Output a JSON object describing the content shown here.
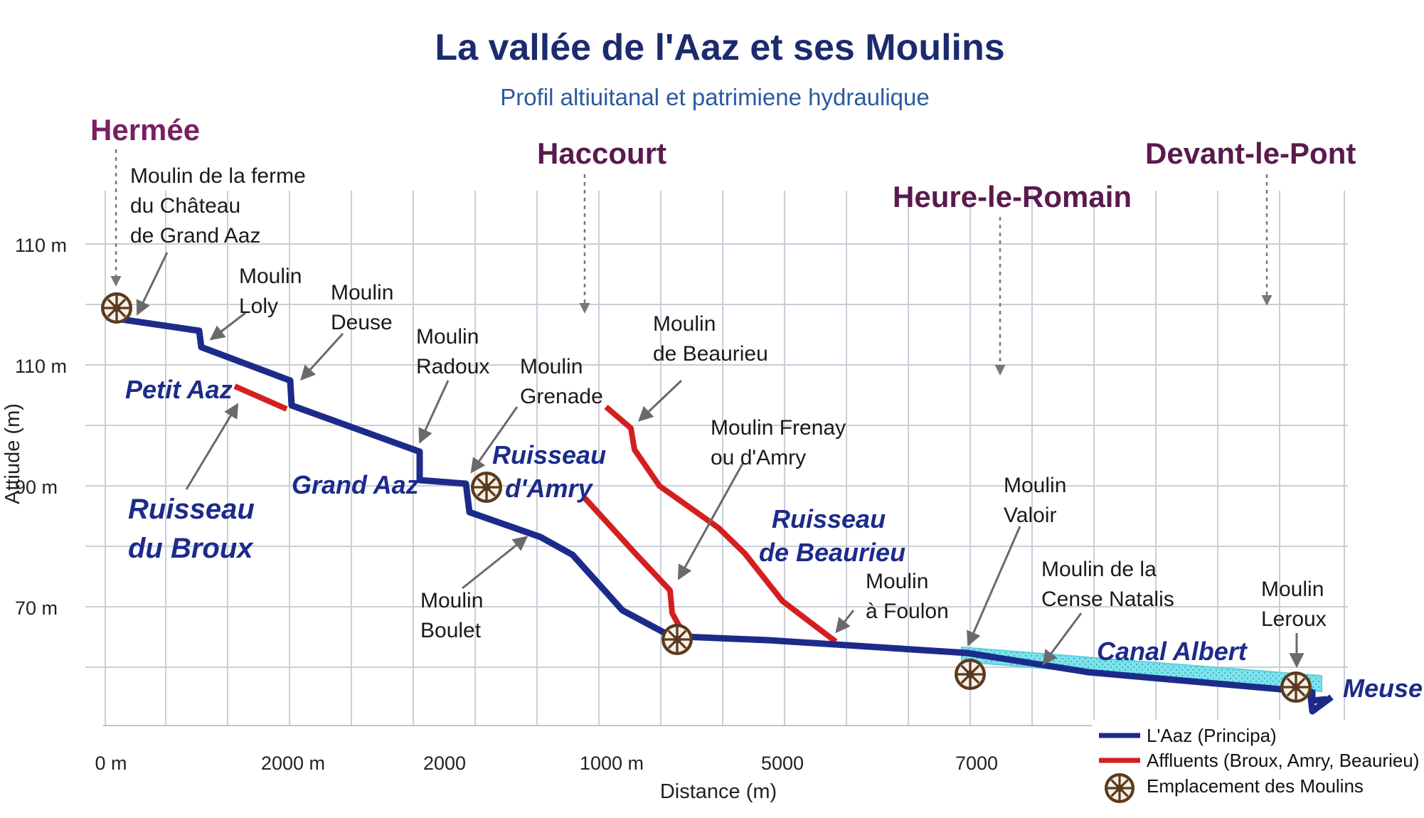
{
  "title": "La vallée de l'Aaz et ses Moulins",
  "subtitle": "Profil altiuitanal et patrimiene hydraulique",
  "towns": {
    "hermee": "Hermée",
    "haccourt": "Haccourt",
    "devant": "Devant-le-Pont",
    "heure": "Heure-le-Romain"
  },
  "mills": {
    "ferme": [
      "Moulin de la ferme",
      "du Château",
      "de Grand Aaz"
    ],
    "loly": [
      "Moulin",
      "Loly"
    ],
    "deuse": [
      "Moulin",
      "Deuse"
    ],
    "radoux": [
      "Moulin",
      "Radoux"
    ],
    "grenade": [
      "Moulin",
      "Grenade"
    ],
    "beaurieu": [
      "Moulin",
      "de Beaurieu"
    ],
    "frenay": [
      "Moulin Frenay",
      "ou d'Amry"
    ],
    "boulet": [
      "Moulin",
      "Boulet"
    ],
    "foulon": [
      "Moulin",
      "à Foulon"
    ],
    "valoir": [
      "Moulin",
      "Valoir"
    ],
    "cense": [
      "Moulin de la",
      "Cense Natalis"
    ],
    "leroux": [
      "Moulin",
      "Leroux"
    ]
  },
  "streams": {
    "petit_aaz": "Petit Aaz",
    "broux": [
      "Ruisseau",
      "du Broux"
    ],
    "grand_aaz": "Grand Aaz",
    "amry": [
      "Ruisseau",
      "d'Amry"
    ],
    "beaurieu": [
      "Ruisseau",
      "de Beaurieu"
    ],
    "canal": "Canal Albert",
    "meuse": "Meuse"
  },
  "axes": {
    "y_title": "Attiude (m)",
    "x_title": "Distance (m)",
    "y_ticks": [
      "110 m",
      "110 m",
      "90 m",
      "70 m"
    ],
    "x_ticks": [
      "0 m",
      "2000 m",
      "2000",
      "1000 m",
      "5000",
      "7000"
    ]
  },
  "legend": {
    "main": "L'Aaz (Principa)",
    "tributaries": "Affluents (Broux, Amry, Beaurieu)",
    "mills": "Emplacement des Moulins"
  },
  "colors": {
    "main_river": "#1c2b8a",
    "tributary": "#d41f1f",
    "canal": "#7fe3ec",
    "mill": "#7a5230",
    "town": "#7a1f63",
    "title": "#1c2b6e"
  }
}
